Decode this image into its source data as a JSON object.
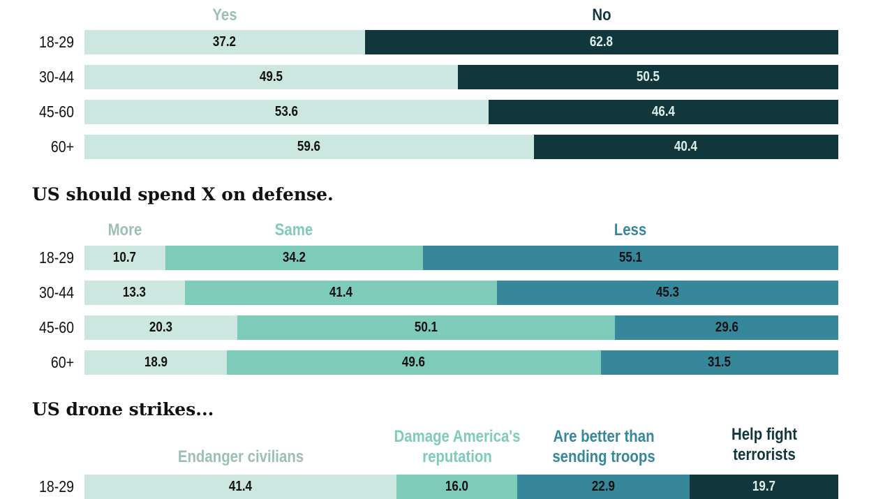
{
  "chart_data": [
    {
      "type": "bar",
      "stacked": true,
      "orientation": "horizontal",
      "title": "",
      "categories": [
        "18-29",
        "30-44",
        "45-60",
        "60+"
      ],
      "series": [
        {
          "name": "Yes",
          "values": [
            37.2,
            49.5,
            53.6,
            59.6
          ],
          "color": "#cce7e0",
          "label_color": "#9dbfb3",
          "text_color": "#111111"
        },
        {
          "name": "No",
          "values": [
            62.8,
            50.5,
            46.4,
            40.4
          ],
          "color": "#11373d",
          "label_color": "#11373d",
          "text_color": "#dcefe9"
        }
      ]
    },
    {
      "type": "bar",
      "stacked": true,
      "orientation": "horizontal",
      "title": "US should spend X on defense.",
      "categories": [
        "18-29",
        "30-44",
        "45-60",
        "60+"
      ],
      "series": [
        {
          "name": "More",
          "values": [
            10.7,
            13.3,
            20.3,
            18.9
          ],
          "color": "#cce7e0",
          "label_color": "#9dbfb3",
          "text_color": "#111111"
        },
        {
          "name": "Same",
          "values": [
            34.2,
            41.4,
            50.1,
            49.6
          ],
          "color": "#7ecbb9",
          "label_color": "#7ecbb9",
          "text_color": "#111111"
        },
        {
          "name": "Less",
          "values": [
            55.1,
            45.3,
            29.6,
            31.5
          ],
          "color": "#36879a",
          "label_color": "#36879a",
          "text_color": "#111111"
        }
      ]
    },
    {
      "type": "bar",
      "stacked": true,
      "orientation": "horizontal",
      "title": "US drone strikes...",
      "categories": [
        "18-29"
      ],
      "series": [
        {
          "name": "Endanger civilians",
          "values": [
            41.4
          ],
          "color": "#cce7e0",
          "label_color": "#9dbfb3",
          "text_color": "#111111"
        },
        {
          "name": "Damage America's reputation",
          "values": [
            16.0
          ],
          "color": "#7ecbb9",
          "label_color": "#7ecbb9",
          "text_color": "#111111"
        },
        {
          "name": "Are better than sending troops",
          "values": [
            22.9
          ],
          "color": "#36879a",
          "label_color": "#36879a",
          "text_color": "#111111"
        },
        {
          "name": "Help fight terrorists",
          "values": [
            19.7
          ],
          "color": "#11373d",
          "label_color": "#11373d",
          "text_color": "#dcefe9"
        }
      ]
    }
  ]
}
